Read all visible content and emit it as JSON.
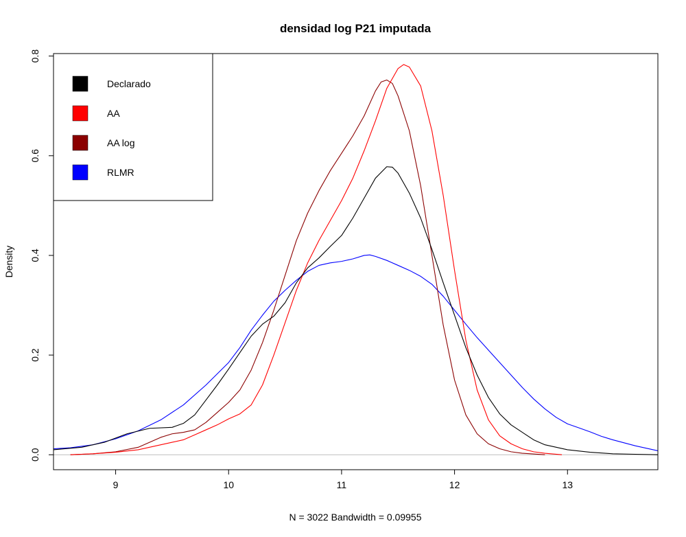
{
  "chart_data": {
    "type": "line",
    "title": "densidad log P21 imputada",
    "xlabel": "N = 3022   Bandwidth = 0.09955",
    "ylabel": "Density",
    "xlim": [
      8.45,
      13.8
    ],
    "ylim": [
      -0.03,
      0.805
    ],
    "x_ticks": [
      9,
      10,
      11,
      12,
      13
    ],
    "x_tick_labels": [
      "9",
      "10",
      "11",
      "12",
      "13"
    ],
    "y_ticks": [
      0.0,
      0.2,
      0.4,
      0.6,
      0.8
    ],
    "y_tick_labels": [
      "0.0",
      "0.2",
      "0.4",
      "0.6",
      "0.8"
    ],
    "legend_position": "top-left",
    "baseline_color": "#bebebe",
    "series": [
      {
        "name": "Declarado",
        "color": "#000000",
        "points": [
          [
            8.45,
            0.01
          ],
          [
            8.7,
            0.015
          ],
          [
            8.9,
            0.025
          ],
          [
            9.1,
            0.042
          ],
          [
            9.3,
            0.053
          ],
          [
            9.5,
            0.055
          ],
          [
            9.6,
            0.063
          ],
          [
            9.7,
            0.08
          ],
          [
            9.8,
            0.11
          ],
          [
            9.9,
            0.14
          ],
          [
            10.0,
            0.172
          ],
          [
            10.1,
            0.205
          ],
          [
            10.2,
            0.238
          ],
          [
            10.3,
            0.262
          ],
          [
            10.4,
            0.278
          ],
          [
            10.5,
            0.305
          ],
          [
            10.6,
            0.345
          ],
          [
            10.7,
            0.375
          ],
          [
            10.8,
            0.395
          ],
          [
            10.9,
            0.418
          ],
          [
            11.0,
            0.44
          ],
          [
            11.1,
            0.475
          ],
          [
            11.2,
            0.515
          ],
          [
            11.3,
            0.555
          ],
          [
            11.4,
            0.578
          ],
          [
            11.45,
            0.577
          ],
          [
            11.5,
            0.565
          ],
          [
            11.6,
            0.525
          ],
          [
            11.7,
            0.475
          ],
          [
            11.8,
            0.412
          ],
          [
            11.9,
            0.345
          ],
          [
            12.0,
            0.28
          ],
          [
            12.1,
            0.215
          ],
          [
            12.2,
            0.16
          ],
          [
            12.3,
            0.115
          ],
          [
            12.4,
            0.082
          ],
          [
            12.5,
            0.06
          ],
          [
            12.6,
            0.045
          ],
          [
            12.7,
            0.03
          ],
          [
            12.8,
            0.02
          ],
          [
            12.9,
            0.015
          ],
          [
            13.0,
            0.01
          ],
          [
            13.2,
            0.005
          ],
          [
            13.4,
            0.002
          ],
          [
            13.6,
            0.001
          ],
          [
            13.8,
            0.0
          ]
        ]
      },
      {
        "name": "AA",
        "color": "#ff0000",
        "points": [
          [
            8.6,
            0.0
          ],
          [
            8.8,
            0.002
          ],
          [
            9.0,
            0.005
          ],
          [
            9.2,
            0.01
          ],
          [
            9.3,
            0.015
          ],
          [
            9.4,
            0.02
          ],
          [
            9.5,
            0.025
          ],
          [
            9.6,
            0.03
          ],
          [
            9.7,
            0.04
          ],
          [
            9.8,
            0.05
          ],
          [
            9.9,
            0.06
          ],
          [
            10.0,
            0.072
          ],
          [
            10.1,
            0.082
          ],
          [
            10.2,
            0.1
          ],
          [
            10.3,
            0.14
          ],
          [
            10.4,
            0.2
          ],
          [
            10.5,
            0.265
          ],
          [
            10.6,
            0.33
          ],
          [
            10.7,
            0.385
          ],
          [
            10.8,
            0.43
          ],
          [
            10.9,
            0.47
          ],
          [
            11.0,
            0.51
          ],
          [
            11.1,
            0.555
          ],
          [
            11.2,
            0.61
          ],
          [
            11.3,
            0.67
          ],
          [
            11.4,
            0.735
          ],
          [
            11.5,
            0.775
          ],
          [
            11.55,
            0.783
          ],
          [
            11.6,
            0.778
          ],
          [
            11.7,
            0.74
          ],
          [
            11.8,
            0.65
          ],
          [
            11.9,
            0.52
          ],
          [
            12.0,
            0.37
          ],
          [
            12.1,
            0.23
          ],
          [
            12.2,
            0.13
          ],
          [
            12.3,
            0.07
          ],
          [
            12.4,
            0.038
          ],
          [
            12.5,
            0.022
          ],
          [
            12.6,
            0.012
          ],
          [
            12.7,
            0.006
          ],
          [
            12.8,
            0.003
          ],
          [
            12.95,
            0.0
          ]
        ]
      },
      {
        "name": "AA log",
        "color": "#8b0000",
        "points": [
          [
            8.6,
            0.0
          ],
          [
            8.8,
            0.002
          ],
          [
            9.0,
            0.006
          ],
          [
            9.2,
            0.015
          ],
          [
            9.3,
            0.025
          ],
          [
            9.4,
            0.035
          ],
          [
            9.5,
            0.042
          ],
          [
            9.6,
            0.045
          ],
          [
            9.7,
            0.05
          ],
          [
            9.8,
            0.065
          ],
          [
            9.9,
            0.085
          ],
          [
            10.0,
            0.105
          ],
          [
            10.1,
            0.13
          ],
          [
            10.2,
            0.17
          ],
          [
            10.3,
            0.225
          ],
          [
            10.4,
            0.29
          ],
          [
            10.5,
            0.36
          ],
          [
            10.6,
            0.43
          ],
          [
            10.7,
            0.485
          ],
          [
            10.8,
            0.53
          ],
          [
            10.9,
            0.57
          ],
          [
            11.0,
            0.605
          ],
          [
            11.1,
            0.64
          ],
          [
            11.2,
            0.68
          ],
          [
            11.3,
            0.73
          ],
          [
            11.35,
            0.748
          ],
          [
            11.4,
            0.752
          ],
          [
            11.45,
            0.745
          ],
          [
            11.5,
            0.72
          ],
          [
            11.6,
            0.65
          ],
          [
            11.7,
            0.54
          ],
          [
            11.8,
            0.4
          ],
          [
            11.9,
            0.26
          ],
          [
            12.0,
            0.15
          ],
          [
            12.1,
            0.08
          ],
          [
            12.2,
            0.042
          ],
          [
            12.3,
            0.022
          ],
          [
            12.4,
            0.012
          ],
          [
            12.5,
            0.006
          ],
          [
            12.6,
            0.003
          ],
          [
            12.8,
            0.0
          ]
        ]
      },
      {
        "name": "RLMR",
        "color": "#0000ff",
        "points": [
          [
            8.45,
            0.012
          ],
          [
            8.6,
            0.014
          ],
          [
            8.8,
            0.02
          ],
          [
            9.0,
            0.032
          ],
          [
            9.2,
            0.048
          ],
          [
            9.4,
            0.07
          ],
          [
            9.6,
            0.1
          ],
          [
            9.8,
            0.14
          ],
          [
            10.0,
            0.185
          ],
          [
            10.1,
            0.215
          ],
          [
            10.2,
            0.25
          ],
          [
            10.3,
            0.28
          ],
          [
            10.4,
            0.308
          ],
          [
            10.5,
            0.33
          ],
          [
            10.6,
            0.35
          ],
          [
            10.7,
            0.368
          ],
          [
            10.8,
            0.38
          ],
          [
            10.9,
            0.385
          ],
          [
            11.0,
            0.388
          ],
          [
            11.1,
            0.393
          ],
          [
            11.2,
            0.4
          ],
          [
            11.25,
            0.401
          ],
          [
            11.3,
            0.398
          ],
          [
            11.4,
            0.39
          ],
          [
            11.5,
            0.38
          ],
          [
            11.6,
            0.37
          ],
          [
            11.7,
            0.358
          ],
          [
            11.8,
            0.342
          ],
          [
            11.9,
            0.318
          ],
          [
            12.0,
            0.29
          ],
          [
            12.1,
            0.262
          ],
          [
            12.2,
            0.235
          ],
          [
            12.3,
            0.21
          ],
          [
            12.4,
            0.185
          ],
          [
            12.5,
            0.16
          ],
          [
            12.6,
            0.135
          ],
          [
            12.7,
            0.112
          ],
          [
            12.8,
            0.092
          ],
          [
            12.9,
            0.075
          ],
          [
            13.0,
            0.062
          ],
          [
            13.1,
            0.054
          ],
          [
            13.2,
            0.046
          ],
          [
            13.3,
            0.037
          ],
          [
            13.4,
            0.03
          ],
          [
            13.5,
            0.024
          ],
          [
            13.6,
            0.018
          ],
          [
            13.7,
            0.013
          ],
          [
            13.8,
            0.008
          ]
        ]
      }
    ]
  }
}
